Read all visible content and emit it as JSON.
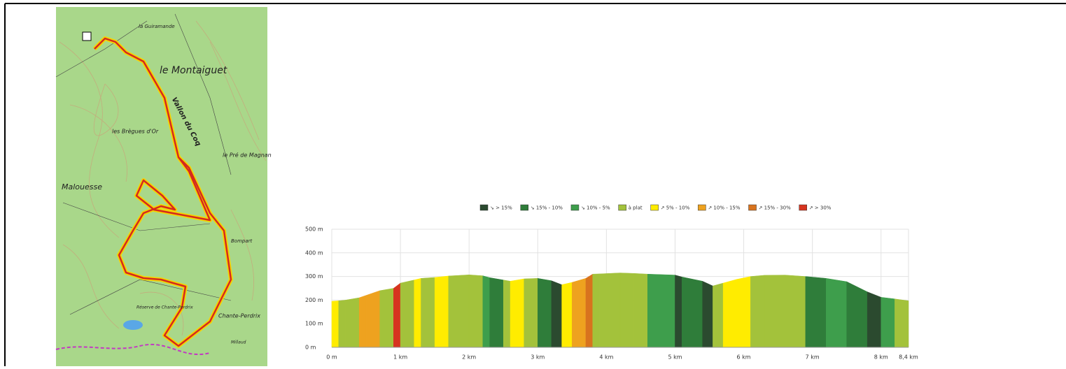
{
  "map": {
    "labels": [
      "le Montaiguet",
      "Vallon du Coq",
      "Malouesse",
      "les Brègues d'Or",
      "le Pré de Magnan",
      "la Guiramande",
      "Bompart",
      "Chante-Perdrix",
      "Réserve de Chante-Perdrix",
      "Millaud"
    ]
  },
  "chart_data": {
    "type": "area",
    "categories": [
      "↘ > 15%",
      "↘ 15% - 10%",
      "↘ 10% - 5%",
      "à plat",
      "↗ 5% - 10%",
      "↗ 10% - 15%",
      "↗ 15% - 30%",
      "↗ > 30%"
    ],
    "category_colors": [
      "#2b4a2f",
      "#2f7d3a",
      "#3e9e4c",
      "#a3c23b",
      "#ffec00",
      "#eea21f",
      "#d8731e",
      "#d6341f"
    ],
    "x": [
      0,
      0.1,
      0.2,
      0.4,
      0.5,
      0.7,
      0.9,
      1.0,
      1.2,
      1.3,
      1.5,
      1.7,
      2.0,
      2.2,
      2.3,
      2.5,
      2.6,
      2.8,
      3.0,
      3.2,
      3.35,
      3.5,
      3.7,
      3.8,
      3.9,
      4.2,
      4.4,
      4.6,
      5.0,
      5.1,
      5.4,
      5.55,
      5.7,
      5.9,
      6.1,
      6.3,
      6.6,
      6.9,
      7.2,
      7.5,
      7.8,
      8.0,
      8.2,
      8.4
    ],
    "series": [
      {
        "values": [
          195,
          197,
          200,
          210,
          220,
          240,
          250,
          272,
          285,
          292,
          296,
          302,
          307,
          303,
          295,
          285,
          280,
          290,
          292,
          282,
          265,
          275,
          292,
          310,
          311,
          315,
          313,
          310,
          306,
          298,
          280,
          260,
          272,
          288,
          300,
          305,
          306,
          300,
          292,
          278,
          235,
          212,
          205,
          197
        ]
      }
    ],
    "slope": [
      4,
      3,
      3,
      5,
      5,
      3,
      7,
      3,
      4,
      3,
      4,
      3,
      3,
      2,
      1,
      3,
      4,
      3,
      1,
      0,
      4,
      5,
      6,
      3,
      3,
      3,
      3,
      2,
      0,
      1,
      0,
      3,
      4,
      4,
      3,
      3,
      3,
      1,
      2,
      1,
      0,
      2,
      3
    ],
    "xlim": [
      0,
      8.4
    ],
    "ylim": [
      0,
      500
    ],
    "xticks": [
      {
        "value": 0,
        "label": "0 m"
      },
      {
        "value": 1,
        "label": "1 km"
      },
      {
        "value": 2,
        "label": "2 km"
      },
      {
        "value": 3,
        "label": "3 km"
      },
      {
        "value": 4,
        "label": "4 km"
      },
      {
        "value": 5,
        "label": "5 km"
      },
      {
        "value": 6,
        "label": "6 km"
      },
      {
        "value": 7,
        "label": "7 km"
      },
      {
        "value": 8,
        "label": "8 km"
      },
      {
        "value": 8.4,
        "label": "8,4 km"
      }
    ],
    "yticks": [
      {
        "value": 0,
        "label": "0 m"
      },
      {
        "value": 100,
        "label": "100 m"
      },
      {
        "value": 200,
        "label": "200 m"
      },
      {
        "value": 300,
        "label": "300 m"
      },
      {
        "value": 400,
        "label": "400 m"
      },
      {
        "value": 500,
        "label": "500 m"
      }
    ],
    "grid": true
  }
}
